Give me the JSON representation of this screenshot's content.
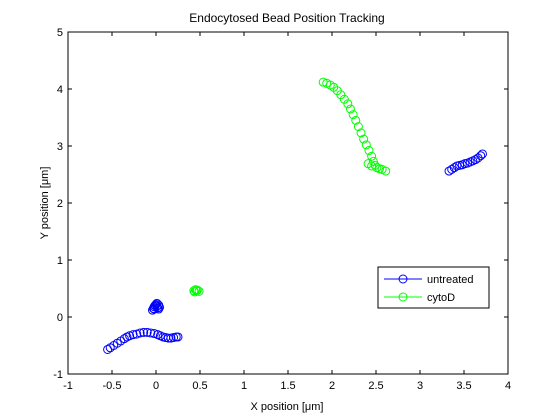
{
  "chart_data": {
    "type": "scatter",
    "title": "Endocytosed Bead Position Tracking",
    "xlabel": "X position [μm]",
    "ylabel": "Y position [μm]",
    "xlim": [
      -1,
      4
    ],
    "ylim": [
      -1,
      5
    ],
    "xticks": [
      "-1",
      "-0.5",
      "0",
      "0.5",
      "1",
      "1.5",
      "2",
      "2.5",
      "3",
      "3.5",
      "4"
    ],
    "yticks": [
      "-1",
      "0",
      "1",
      "2",
      "3",
      "4",
      "5"
    ],
    "grid": false,
    "legend_position": "bottom-right",
    "series": [
      {
        "name": "untreated",
        "color": "#0000ff",
        "marker": "circle-open",
        "tracks": [
          [
            [
              -0.55,
              -0.57
            ],
            [
              -0.52,
              -0.54
            ],
            [
              -0.48,
              -0.5
            ],
            [
              -0.44,
              -0.46
            ],
            [
              -0.4,
              -0.42
            ],
            [
              -0.36,
              -0.38
            ],
            [
              -0.33,
              -0.35
            ],
            [
              -0.3,
              -0.33
            ],
            [
              -0.26,
              -0.31
            ],
            [
              -0.22,
              -0.3
            ],
            [
              -0.18,
              -0.28
            ],
            [
              -0.14,
              -0.27
            ],
            [
              -0.1,
              -0.27
            ],
            [
              -0.06,
              -0.28
            ],
            [
              -0.02,
              -0.29
            ],
            [
              0.02,
              -0.31
            ],
            [
              0.05,
              -0.33
            ],
            [
              0.08,
              -0.35
            ],
            [
              0.11,
              -0.36
            ],
            [
              0.14,
              -0.37
            ],
            [
              0.17,
              -0.37
            ],
            [
              0.2,
              -0.36
            ],
            [
              0.23,
              -0.35
            ],
            [
              0.25,
              -0.35
            ]
          ],
          [
            [
              -0.04,
              0.12
            ],
            [
              -0.03,
              0.15
            ],
            [
              -0.02,
              0.18
            ],
            [
              -0.01,
              0.2
            ],
            [
              0.0,
              0.22
            ],
            [
              0.01,
              0.19
            ],
            [
              0.02,
              0.16
            ],
            [
              0.03,
              0.14
            ],
            [
              0.04,
              0.17
            ],
            [
              0.03,
              0.21
            ],
            [
              0.01,
              0.24
            ],
            [
              -0.01,
              0.2
            ],
            [
              -0.02,
              0.14
            ]
          ],
          [
            [
              3.33,
              2.56
            ],
            [
              3.36,
              2.59
            ],
            [
              3.39,
              2.62
            ],
            [
              3.42,
              2.65
            ],
            [
              3.45,
              2.66
            ],
            [
              3.48,
              2.67
            ],
            [
              3.51,
              2.69
            ],
            [
              3.54,
              2.7
            ],
            [
              3.57,
              2.72
            ],
            [
              3.6,
              2.74
            ],
            [
              3.63,
              2.76
            ],
            [
              3.66,
              2.79
            ],
            [
              3.69,
              2.83
            ],
            [
              3.71,
              2.86
            ]
          ]
        ]
      },
      {
        "name": "cytoD",
        "color": "#00ff00",
        "marker": "circle-open",
        "tracks": [
          [
            [
              0.43,
              0.46
            ],
            [
              0.45,
              0.48
            ],
            [
              0.47,
              0.47
            ],
            [
              0.49,
              0.45
            ],
            [
              0.44,
              0.44
            ],
            [
              0.46,
              0.46
            ]
          ],
          [
            [
              1.9,
              4.12
            ],
            [
              1.94,
              4.1
            ],
            [
              1.98,
              4.07
            ],
            [
              2.02,
              4.03
            ],
            [
              2.06,
              3.97
            ],
            [
              2.1,
              3.9
            ],
            [
              2.14,
              3.82
            ],
            [
              2.18,
              3.74
            ],
            [
              2.21,
              3.65
            ],
            [
              2.24,
              3.55
            ],
            [
              2.27,
              3.45
            ],
            [
              2.3,
              3.34
            ],
            [
              2.33,
              3.23
            ],
            [
              2.36,
              3.12
            ],
            [
              2.39,
              3.02
            ],
            [
              2.42,
              2.92
            ],
            [
              2.45,
              2.82
            ],
            [
              2.47,
              2.73
            ],
            [
              2.49,
              2.66
            ],
            [
              2.51,
              2.62
            ],
            [
              2.54,
              2.6
            ],
            [
              2.57,
              2.59
            ],
            [
              2.61,
              2.56
            ],
            [
              2.41,
              2.69
            ],
            [
              2.45,
              2.65
            ]
          ]
        ]
      }
    ]
  }
}
